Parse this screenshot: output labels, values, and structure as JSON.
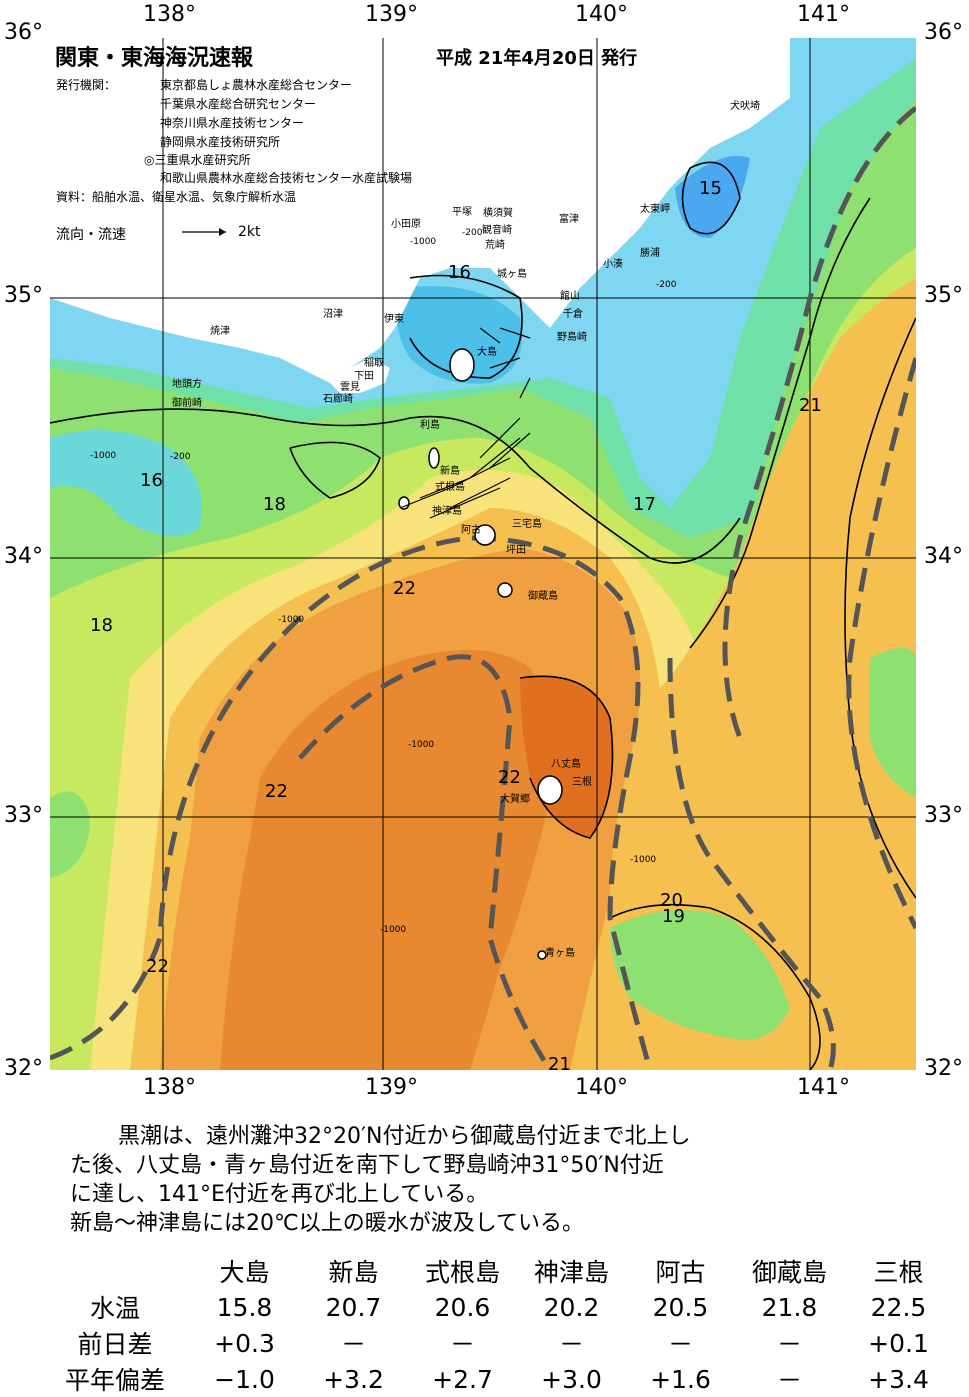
{
  "header": {
    "title": "関東・東海海況速報",
    "date": "平成 21年4月20日 発行",
    "issuer_label": "発行機関：",
    "issuers": [
      "東京都島しょ農林水産総合センター",
      "千葉県水産総合研究センター",
      "神奈川県水産技術センター",
      "静岡県水産技術研究所",
      "◎三重県水産研究所",
      "和歌山県農林水産総合技術センター水産試験場"
    ],
    "sources": "資料：船舶水温、衛星水温、気象庁解析水温",
    "legend_label": "流向・流速",
    "legend_speed": "2kt"
  },
  "map": {
    "longitude_labels": [
      "138°",
      "139°",
      "140°",
      "141°"
    ],
    "latitude_labels": [
      "36°",
      "35°",
      "34°",
      "33°",
      "32°"
    ],
    "places": [
      "犬吠埼",
      "太東岬",
      "勝浦",
      "小湊",
      "富津",
      "観音崎",
      "荒崎",
      "横須賀",
      "平塚",
      "小田原",
      "館山",
      "千倉",
      "野島崎",
      "城ヶ島",
      "伊東",
      "沼津",
      "焼津",
      "稲取",
      "下田",
      "雲見",
      "石廊崎",
      "地頭方",
      "御前崎",
      "大島",
      "利島",
      "新島",
      "式根島",
      "神津島",
      "阿古",
      "三宅島",
      "坪田",
      "御蔵島",
      "八丈島",
      "三根",
      "大賀郷",
      "青ヶ島"
    ],
    "isotherm_labels": [
      "15",
      "16",
      "16",
      "16",
      "17",
      "18",
      "18",
      "19",
      "20",
      "21",
      "21",
      "22",
      "22",
      "22",
      "22"
    ],
    "depth_labels": [
      "-1000",
      "-200"
    ],
    "colors": {
      "t15": "#4aa8f0",
      "t16": "#7fd6f0",
      "t16b": "#6ad8d8",
      "t17": "#6fe0a8",
      "t18": "#8ee070",
      "t19": "#c8e860",
      "t20": "#f7e37a",
      "t21": "#f5c050",
      "t22": "#f0a040",
      "t22b": "#e88830",
      "t23": "#e07020",
      "land": "#ffffff",
      "kuroshio_axis": "#555555"
    }
  },
  "description": [
    "黒潮は、遠州灘沖32°20′N付近から御蔵島付近まで北上し",
    "た後、八丈島・青ヶ島付近を南下して野島崎沖31°50′N付近",
    "に達し、141°E付近を再び北上している。",
    "新島～神津島には20℃以上の暖水が波及している。"
  ],
  "stats": {
    "stations": [
      "大島",
      "新島",
      "式根島",
      "神津島",
      "阿古",
      "御蔵島",
      "三根"
    ],
    "rows": [
      {
        "label": "水温",
        "values": [
          "15.8",
          "20.7",
          "20.6",
          "20.2",
          "20.5",
          "21.8",
          "22.5"
        ]
      },
      {
        "label": "前日差",
        "values": [
          "+0.3",
          "－",
          "－",
          "－",
          "－",
          "－",
          "+0.1"
        ]
      },
      {
        "label": "平年偏差",
        "values": [
          "−1.0",
          "+3.2",
          "+2.7",
          "+3.0",
          "+1.6",
          "－",
          "+3.4"
        ]
      }
    ]
  }
}
